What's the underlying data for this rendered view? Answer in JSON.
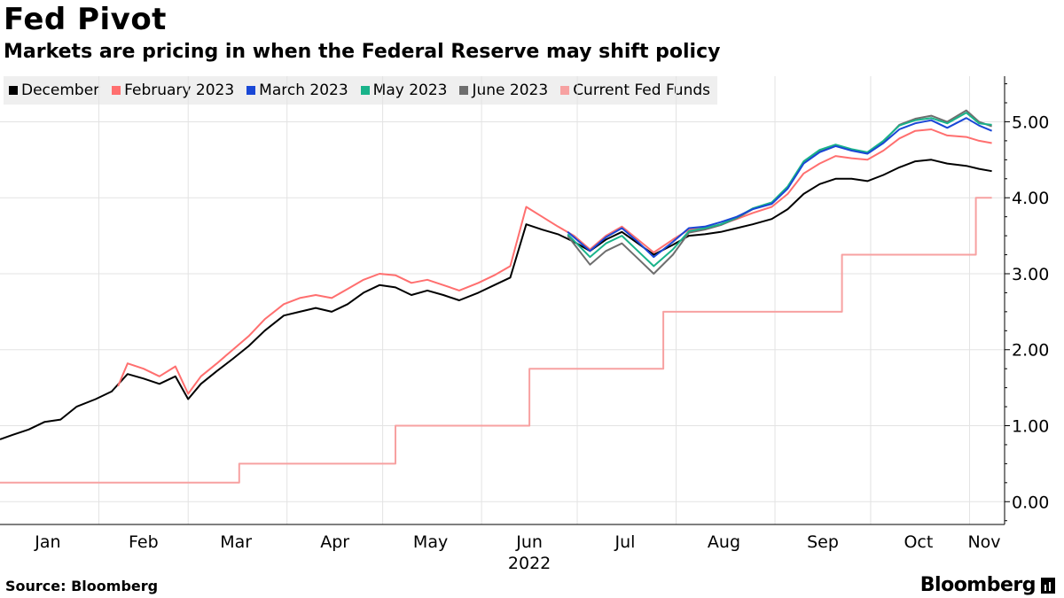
{
  "header": {
    "title": "Fed Pivot",
    "subtitle": "Markets are pricing in when the Federal Reserve may shift policy"
  },
  "footer": {
    "source": "Source: Bloomberg",
    "brand": "Bloomberg"
  },
  "chart_data": {
    "type": "line",
    "title": "Fed Pivot",
    "subtitle": "Markets are pricing in when the Federal Reserve may shift policy",
    "xlabel": "",
    "ylabel": "",
    "year_label": "2022",
    "ylim": [
      -0.3,
      5.6
    ],
    "yticks": [
      "0.00",
      "1.00",
      "2.00",
      "3.00",
      "4.00",
      "5.00"
    ],
    "ytick_values": [
      0,
      1,
      2,
      3,
      4,
      5
    ],
    "xrange": [
      "2022-01-01",
      "2022-11-12"
    ],
    "xticks": [
      {
        "label": "Jan",
        "date": "2022-01-16"
      },
      {
        "label": "Feb",
        "date": "2022-02-15"
      },
      {
        "label": "Mar",
        "date": "2022-03-16"
      },
      {
        "label": "Apr",
        "date": "2022-04-16"
      },
      {
        "label": "May",
        "date": "2022-05-16"
      },
      {
        "label": "Jun",
        "date": "2022-06-16"
      },
      {
        "label": "Jul",
        "date": "2022-07-16"
      },
      {
        "label": "Aug",
        "date": "2022-08-16"
      },
      {
        "label": "Sep",
        "date": "2022-09-16"
      },
      {
        "label": "Oct",
        "date": "2022-10-16"
      },
      {
        "label": "Nov",
        "date": "2022-11-16"
      }
    ],
    "grid": true,
    "legend_position": "top-left",
    "series": [
      {
        "name": "December",
        "color": "#000000",
        "points": [
          [
            "2022-01-01",
            0.82
          ],
          [
            "2022-01-05",
            0.88
          ],
          [
            "2022-01-10",
            0.95
          ],
          [
            "2022-01-15",
            1.05
          ],
          [
            "2022-01-20",
            1.08
          ],
          [
            "2022-01-25",
            1.25
          ],
          [
            "2022-01-31",
            1.35
          ],
          [
            "2022-02-05",
            1.45
          ],
          [
            "2022-02-10",
            1.68
          ],
          [
            "2022-02-15",
            1.62
          ],
          [
            "2022-02-20",
            1.55
          ],
          [
            "2022-02-25",
            1.65
          ],
          [
            "2022-03-01",
            1.35
          ],
          [
            "2022-03-05",
            1.55
          ],
          [
            "2022-03-10",
            1.72
          ],
          [
            "2022-03-15",
            1.88
          ],
          [
            "2022-03-20",
            2.05
          ],
          [
            "2022-03-25",
            2.25
          ],
          [
            "2022-03-31",
            2.45
          ],
          [
            "2022-04-05",
            2.5
          ],
          [
            "2022-04-10",
            2.55
          ],
          [
            "2022-04-15",
            2.5
          ],
          [
            "2022-04-20",
            2.6
          ],
          [
            "2022-04-25",
            2.75
          ],
          [
            "2022-04-30",
            2.85
          ],
          [
            "2022-05-05",
            2.82
          ],
          [
            "2022-05-10",
            2.72
          ],
          [
            "2022-05-15",
            2.78
          ],
          [
            "2022-05-20",
            2.72
          ],
          [
            "2022-05-25",
            2.65
          ],
          [
            "2022-05-31",
            2.75
          ],
          [
            "2022-06-05",
            2.85
          ],
          [
            "2022-06-10",
            2.95
          ],
          [
            "2022-06-15",
            3.65
          ],
          [
            "2022-06-20",
            3.58
          ],
          [
            "2022-06-25",
            3.52
          ],
          [
            "2022-06-30",
            3.42
          ],
          [
            "2022-07-05",
            3.3
          ],
          [
            "2022-07-10",
            3.45
          ],
          [
            "2022-07-15",
            3.55
          ],
          [
            "2022-07-20",
            3.4
          ],
          [
            "2022-07-25",
            3.25
          ],
          [
            "2022-07-31",
            3.38
          ],
          [
            "2022-08-05",
            3.5
          ],
          [
            "2022-08-10",
            3.52
          ],
          [
            "2022-08-15",
            3.55
          ],
          [
            "2022-08-20",
            3.6
          ],
          [
            "2022-08-25",
            3.65
          ],
          [
            "2022-08-31",
            3.72
          ],
          [
            "2022-09-05",
            3.85
          ],
          [
            "2022-09-10",
            4.05
          ],
          [
            "2022-09-15",
            4.18
          ],
          [
            "2022-09-20",
            4.25
          ],
          [
            "2022-09-25",
            4.25
          ],
          [
            "2022-09-30",
            4.22
          ],
          [
            "2022-10-05",
            4.3
          ],
          [
            "2022-10-10",
            4.4
          ],
          [
            "2022-10-15",
            4.48
          ],
          [
            "2022-10-20",
            4.5
          ],
          [
            "2022-10-25",
            4.45
          ],
          [
            "2022-10-31",
            4.42
          ],
          [
            "2022-11-04",
            4.38
          ],
          [
            "2022-11-08",
            4.35
          ]
        ]
      },
      {
        "name": "February 2023",
        "color": "#ff6f6f",
        "points": [
          [
            "2022-02-07",
            1.52
          ],
          [
            "2022-02-10",
            1.82
          ],
          [
            "2022-02-15",
            1.75
          ],
          [
            "2022-02-20",
            1.65
          ],
          [
            "2022-02-25",
            1.78
          ],
          [
            "2022-03-01",
            1.42
          ],
          [
            "2022-03-05",
            1.65
          ],
          [
            "2022-03-10",
            1.82
          ],
          [
            "2022-03-15",
            2.0
          ],
          [
            "2022-03-20",
            2.18
          ],
          [
            "2022-03-25",
            2.4
          ],
          [
            "2022-03-31",
            2.6
          ],
          [
            "2022-04-05",
            2.68
          ],
          [
            "2022-04-10",
            2.72
          ],
          [
            "2022-04-15",
            2.68
          ],
          [
            "2022-04-20",
            2.8
          ],
          [
            "2022-04-25",
            2.92
          ],
          [
            "2022-04-30",
            3.0
          ],
          [
            "2022-05-05",
            2.98
          ],
          [
            "2022-05-10",
            2.88
          ],
          [
            "2022-05-15",
            2.92
          ],
          [
            "2022-05-20",
            2.85
          ],
          [
            "2022-05-25",
            2.78
          ],
          [
            "2022-05-31",
            2.88
          ],
          [
            "2022-06-05",
            2.98
          ],
          [
            "2022-06-10",
            3.1
          ],
          [
            "2022-06-15",
            3.88
          ],
          [
            "2022-06-20",
            3.75
          ],
          [
            "2022-06-25",
            3.62
          ],
          [
            "2022-06-30",
            3.5
          ],
          [
            "2022-07-05",
            3.32
          ],
          [
            "2022-07-10",
            3.5
          ],
          [
            "2022-07-15",
            3.62
          ],
          [
            "2022-07-20",
            3.45
          ],
          [
            "2022-07-25",
            3.28
          ],
          [
            "2022-07-31",
            3.45
          ],
          [
            "2022-08-05",
            3.58
          ],
          [
            "2022-08-10",
            3.6
          ],
          [
            "2022-08-15",
            3.65
          ],
          [
            "2022-08-20",
            3.72
          ],
          [
            "2022-08-25",
            3.8
          ],
          [
            "2022-08-31",
            3.88
          ],
          [
            "2022-09-05",
            4.05
          ],
          [
            "2022-09-10",
            4.32
          ],
          [
            "2022-09-15",
            4.45
          ],
          [
            "2022-09-20",
            4.55
          ],
          [
            "2022-09-25",
            4.52
          ],
          [
            "2022-09-30",
            4.5
          ],
          [
            "2022-10-05",
            4.62
          ],
          [
            "2022-10-10",
            4.78
          ],
          [
            "2022-10-15",
            4.88
          ],
          [
            "2022-10-20",
            4.9
          ],
          [
            "2022-10-25",
            4.82
          ],
          [
            "2022-10-31",
            4.8
          ],
          [
            "2022-11-04",
            4.75
          ],
          [
            "2022-11-08",
            4.72
          ]
        ]
      },
      {
        "name": "March 2023",
        "color": "#1947d6",
        "points": [
          [
            "2022-06-28",
            3.55
          ],
          [
            "2022-07-05",
            3.3
          ],
          [
            "2022-07-10",
            3.48
          ],
          [
            "2022-07-15",
            3.6
          ],
          [
            "2022-07-20",
            3.42
          ],
          [
            "2022-07-25",
            3.22
          ],
          [
            "2022-07-31",
            3.42
          ],
          [
            "2022-08-05",
            3.6
          ],
          [
            "2022-08-10",
            3.62
          ],
          [
            "2022-08-15",
            3.68
          ],
          [
            "2022-08-20",
            3.75
          ],
          [
            "2022-08-25",
            3.85
          ],
          [
            "2022-08-31",
            3.92
          ],
          [
            "2022-09-05",
            4.12
          ],
          [
            "2022-09-10",
            4.45
          ],
          [
            "2022-09-15",
            4.6
          ],
          [
            "2022-09-20",
            4.68
          ],
          [
            "2022-09-25",
            4.62
          ],
          [
            "2022-09-30",
            4.58
          ],
          [
            "2022-10-05",
            4.72
          ],
          [
            "2022-10-10",
            4.9
          ],
          [
            "2022-10-15",
            4.98
          ],
          [
            "2022-10-20",
            5.02
          ],
          [
            "2022-10-25",
            4.92
          ],
          [
            "2022-10-31",
            5.05
          ],
          [
            "2022-11-04",
            4.95
          ],
          [
            "2022-11-08",
            4.88
          ]
        ]
      },
      {
        "name": "May 2023",
        "color": "#19b38a",
        "points": [
          [
            "2022-06-28",
            3.52
          ],
          [
            "2022-07-05",
            3.22
          ],
          [
            "2022-07-10",
            3.4
          ],
          [
            "2022-07-15",
            3.5
          ],
          [
            "2022-07-20",
            3.3
          ],
          [
            "2022-07-25",
            3.1
          ],
          [
            "2022-07-31",
            3.32
          ],
          [
            "2022-08-05",
            3.56
          ],
          [
            "2022-08-10",
            3.6
          ],
          [
            "2022-08-15",
            3.65
          ],
          [
            "2022-08-20",
            3.74
          ],
          [
            "2022-08-25",
            3.86
          ],
          [
            "2022-08-31",
            3.94
          ],
          [
            "2022-09-05",
            4.15
          ],
          [
            "2022-09-10",
            4.48
          ],
          [
            "2022-09-15",
            4.63
          ],
          [
            "2022-09-20",
            4.7
          ],
          [
            "2022-09-25",
            4.64
          ],
          [
            "2022-09-30",
            4.6
          ],
          [
            "2022-10-05",
            4.75
          ],
          [
            "2022-10-10",
            4.95
          ],
          [
            "2022-10-15",
            5.02
          ],
          [
            "2022-10-20",
            5.05
          ],
          [
            "2022-10-25",
            4.98
          ],
          [
            "2022-10-31",
            5.12
          ],
          [
            "2022-11-04",
            4.98
          ],
          [
            "2022-11-08",
            4.96
          ]
        ]
      },
      {
        "name": "June 2023",
        "color": "#6e6e6e",
        "points": [
          [
            "2022-06-28",
            3.5
          ],
          [
            "2022-07-05",
            3.12
          ],
          [
            "2022-07-10",
            3.3
          ],
          [
            "2022-07-15",
            3.4
          ],
          [
            "2022-07-20",
            3.2
          ],
          [
            "2022-07-25",
            3.0
          ],
          [
            "2022-07-31",
            3.25
          ],
          [
            "2022-08-05",
            3.54
          ],
          [
            "2022-08-10",
            3.58
          ],
          [
            "2022-08-15",
            3.64
          ],
          [
            "2022-08-20",
            3.73
          ],
          [
            "2022-08-25",
            3.85
          ],
          [
            "2022-08-31",
            3.93
          ],
          [
            "2022-09-05",
            4.14
          ],
          [
            "2022-09-10",
            4.47
          ],
          [
            "2022-09-15",
            4.62
          ],
          [
            "2022-09-20",
            4.69
          ],
          [
            "2022-09-25",
            4.63
          ],
          [
            "2022-09-30",
            4.59
          ],
          [
            "2022-10-05",
            4.74
          ],
          [
            "2022-10-10",
            4.96
          ],
          [
            "2022-10-15",
            5.04
          ],
          [
            "2022-10-20",
            5.08
          ],
          [
            "2022-10-25",
            5.0
          ],
          [
            "2022-10-31",
            5.15
          ],
          [
            "2022-11-04",
            5.0
          ],
          [
            "2022-11-08",
            4.94
          ]
        ]
      },
      {
        "name": "Current Fed Funds",
        "color": "#f7a1a1",
        "step": true,
        "points": [
          [
            "2022-01-01",
            0.25
          ],
          [
            "2022-03-17",
            0.5
          ],
          [
            "2022-05-05",
            1.0
          ],
          [
            "2022-06-16",
            1.75
          ],
          [
            "2022-07-28",
            2.5
          ],
          [
            "2022-09-22",
            3.25
          ],
          [
            "2022-11-03",
            4.0
          ],
          [
            "2022-11-08",
            4.0
          ]
        ]
      }
    ]
  }
}
